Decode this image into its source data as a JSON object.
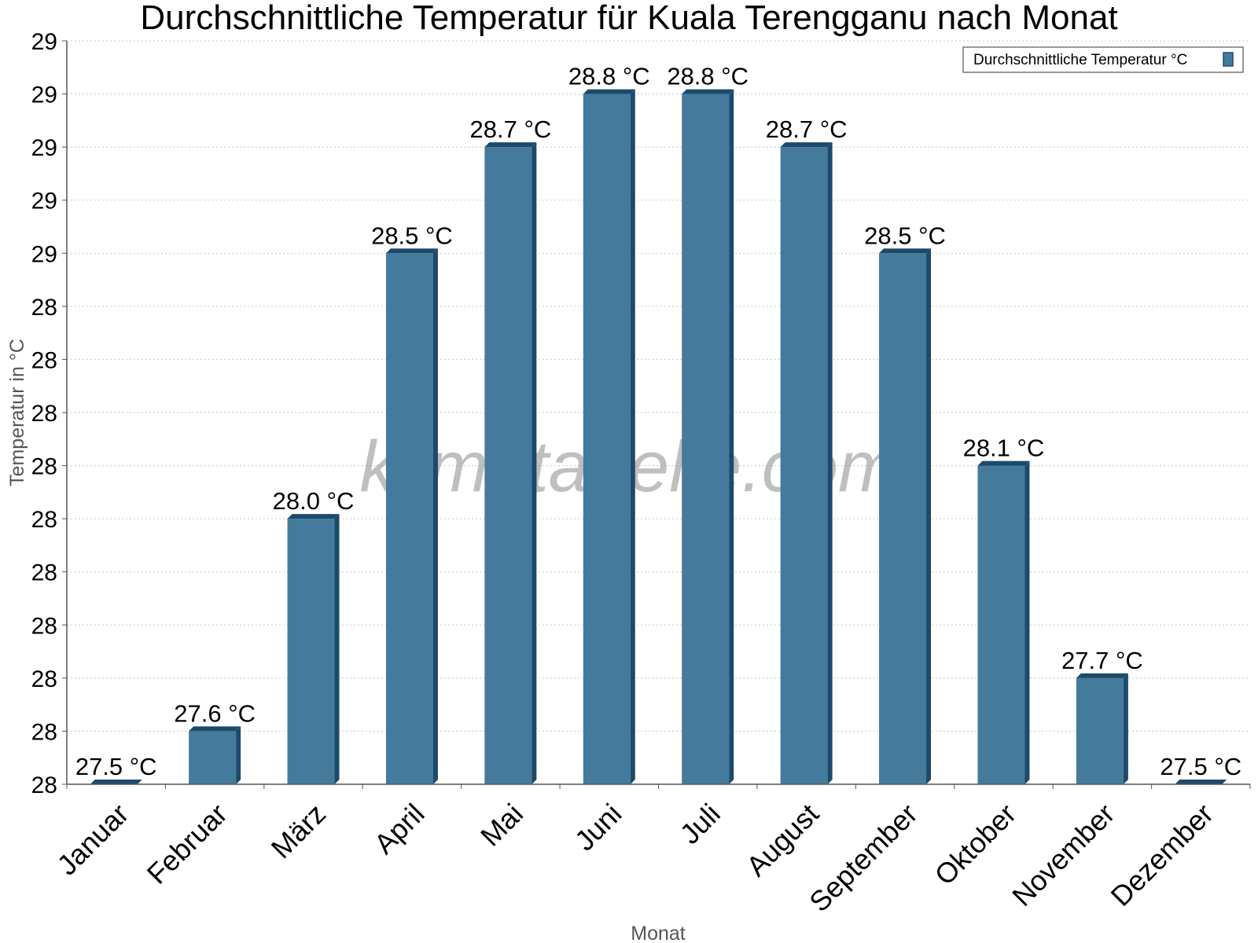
{
  "chart_data": {
    "type": "bar",
    "title": "Durchschnittliche Temperatur für Kuala Terengganu nach Monat",
    "xlabel": "Monat",
    "ylabel": "Temperatur in °C",
    "categories": [
      "Januar",
      "Februar",
      "März",
      "April",
      "Mai",
      "Juni",
      "Juli",
      "August",
      "September",
      "Oktober",
      "November",
      "Dezember"
    ],
    "series": [
      {
        "name": "Durchschnittliche Temperatur °C",
        "values": [
          27.5,
          27.6,
          28.0,
          28.5,
          28.7,
          28.8,
          28.8,
          28.7,
          28.5,
          28.1,
          27.7,
          27.5
        ],
        "labels": [
          "27.5 °C",
          "27.6 °C",
          "28.0 °C",
          "28.5 °C",
          "28.7 °C",
          "28.8 °C",
          "28.8 °C",
          "28.7 °C",
          "28.5 °C",
          "28.1 °C",
          "27.7 °C",
          "27.5 °C"
        ]
      }
    ],
    "ylim": [
      27.5,
      28.9
    ],
    "y_ticks": [
      27.5,
      27.6,
      27.7,
      27.8,
      27.9,
      28.0,
      28.1,
      28.2,
      28.3,
      28.4,
      28.5,
      28.6,
      28.7,
      28.8,
      28.9
    ],
    "y_tick_labels": [
      "28",
      "28",
      "28",
      "28",
      "28",
      "28",
      "28",
      "28",
      "28",
      "28",
      "29",
      "29",
      "29",
      "29",
      "29"
    ],
    "grid": true,
    "legend_position": "top-right",
    "watermark": "klimatabelle.com",
    "colors": {
      "bar": "#447a9c",
      "bar_dark": "#1d4a6b",
      "legend_swatch": "#447a9c"
    }
  }
}
